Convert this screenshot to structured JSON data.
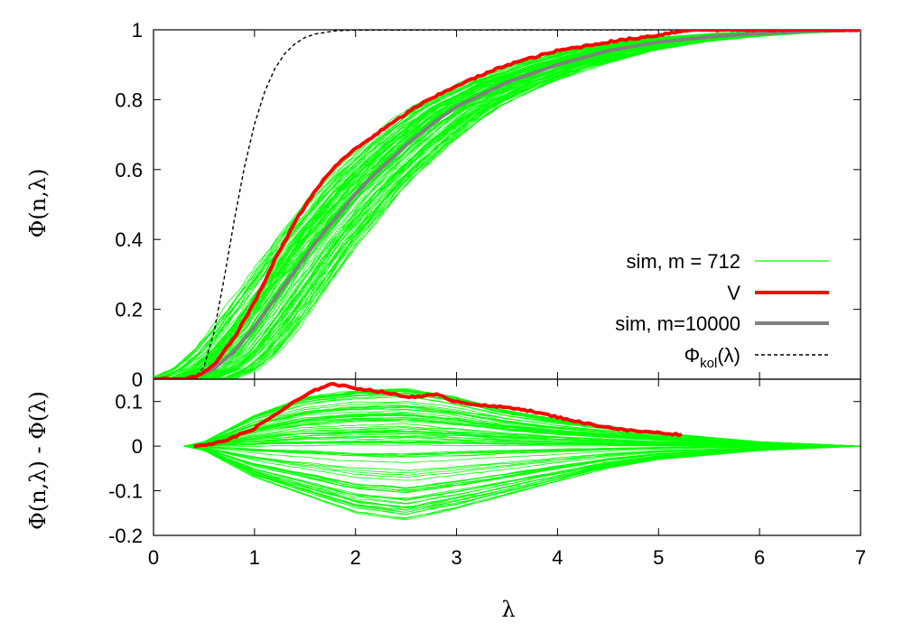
{
  "chart_data": [
    {
      "type": "line",
      "panel": "top",
      "title": "",
      "xlabel": "λ",
      "ylabel": "Φ(n,λ)",
      "xlim": [
        0,
        7
      ],
      "ylim": [
        0,
        1
      ],
      "xticks": [
        "0",
        "1",
        "2",
        "3",
        "4",
        "5",
        "6",
        "7"
      ],
      "yticks": [
        "0",
        "0.2",
        "0.4",
        "0.6",
        "0.8",
        "1"
      ],
      "legend_position": "bottom-right",
      "series": [
        {
          "name": "sim, m = 712",
          "color": "#00ff00",
          "description_count": 100,
          "x": [
            0,
            0.3,
            0.5,
            0.7,
            1.0,
            1.3,
            1.6,
            2.0,
            2.5,
            3.0,
            3.5,
            4.0,
            4.5,
            5.0,
            5.5,
            6.0,
            6.5,
            7.0
          ],
          "y": [
            0,
            0,
            0.01,
            0.05,
            0.17,
            0.32,
            0.46,
            0.61,
            0.75,
            0.85,
            0.91,
            0.95,
            0.975,
            0.988,
            0.994,
            0.997,
            0.999,
            1.0
          ]
        },
        {
          "name": "V",
          "color": "#ff0000",
          "x": [
            0,
            0.3,
            0.45,
            0.6,
            0.8,
            1.0,
            1.2,
            1.4,
            1.6,
            1.8,
            2.0,
            2.3,
            2.6,
            3.0,
            3.5,
            4.0,
            4.5,
            5.0,
            5.3,
            7.0
          ],
          "y": [
            0,
            0,
            0.01,
            0.04,
            0.12,
            0.22,
            0.34,
            0.45,
            0.54,
            0.61,
            0.66,
            0.72,
            0.78,
            0.84,
            0.9,
            0.94,
            0.965,
            0.985,
            1.0,
            1.0
          ]
        },
        {
          "name": "sim, m=10000",
          "color": "#808080",
          "x": [
            0,
            0.3,
            0.4,
            0.6,
            0.8,
            1.0,
            1.2,
            1.4,
            1.6,
            1.8,
            2.0,
            2.2,
            2.5,
            2.8,
            3.0,
            3.5,
            4.0,
            4.5,
            5.0,
            5.5,
            6.0,
            6.5,
            7.0
          ],
          "y": [
            0,
            0,
            0.005,
            0.03,
            0.08,
            0.15,
            0.23,
            0.31,
            0.39,
            0.46,
            0.53,
            0.59,
            0.67,
            0.74,
            0.78,
            0.85,
            0.9,
            0.94,
            0.965,
            0.98,
            0.99,
            0.996,
            1.0
          ]
        },
        {
          "name": "Φkol(λ)",
          "color": "#000000",
          "x": [
            0,
            0.3,
            0.4,
            0.5,
            0.6,
            0.7,
            0.8,
            0.9,
            1.0,
            1.1,
            1.2,
            1.3,
            1.4,
            1.5,
            1.6,
            1.8,
            2.0,
            7.0
          ],
          "y": [
            0,
            0.0,
            0.003,
            0.036,
            0.136,
            0.289,
            0.456,
            0.607,
            0.73,
            0.822,
            0.888,
            0.932,
            0.96,
            0.978,
            0.988,
            0.997,
            0.9993,
            1.0
          ]
        }
      ]
    },
    {
      "type": "line",
      "panel": "bottom",
      "title": "",
      "xlabel": "λ",
      "ylabel": "Φ(n,λ) - Φ(λ)",
      "xlim": [
        0,
        7
      ],
      "ylim": [
        -0.2,
        0.15
      ],
      "xticks": [
        "0",
        "1",
        "2",
        "3",
        "4",
        "5",
        "6",
        "7"
      ],
      "yticks": [
        "-0.2",
        "-0.1",
        "0",
        "0.1"
      ],
      "series": [
        {
          "name": "sim, m = 712",
          "color": "#00ff00",
          "x": [
            0.3,
            0.5,
            1.0,
            1.5,
            2.0,
            2.5,
            3.0,
            3.5,
            4.0,
            4.5,
            5.0,
            5.5,
            6.0,
            7.0
          ],
          "y_upper": [
            0,
            0.01,
            0.07,
            0.11,
            0.125,
            0.13,
            0.11,
            0.08,
            0.06,
            0.045,
            0.03,
            0.02,
            0.01,
            0
          ],
          "y_lower": [
            0,
            -0.01,
            -0.07,
            -0.11,
            -0.15,
            -0.165,
            -0.14,
            -0.11,
            -0.08,
            -0.05,
            -0.03,
            -0.02,
            -0.01,
            0
          ]
        },
        {
          "name": "V",
          "color": "#ff0000",
          "x": [
            0.4,
            0.6,
            0.8,
            1.0,
            1.2,
            1.4,
            1.6,
            1.75,
            2.0,
            2.3,
            2.5,
            2.8,
            3.0,
            3.3,
            3.6,
            4.0,
            4.3,
            4.7,
            5.0,
            5.25
          ],
          "y": [
            0,
            0.005,
            0.02,
            0.04,
            0.07,
            0.1,
            0.125,
            0.14,
            0.13,
            0.12,
            0.11,
            0.115,
            0.1,
            0.09,
            0.085,
            0.065,
            0.05,
            0.035,
            0.03,
            0.025
          ]
        }
      ]
    }
  ],
  "legend": [
    {
      "label": "sim, m = 712",
      "color": "#00ff00",
      "width": 1.2,
      "dash": ""
    },
    {
      "label": "V",
      "color": "#ff0000",
      "width": 4,
      "dash": ""
    },
    {
      "label": "sim, m=10000",
      "color": "#808080",
      "width": 4,
      "dash": ""
    },
    {
      "label_main": "Φ",
      "label_sub": "kol",
      "label_tail": "(λ)",
      "label": "Φkol(λ)",
      "color": "#000000",
      "width": 1.4,
      "dash": "4,3"
    }
  ]
}
